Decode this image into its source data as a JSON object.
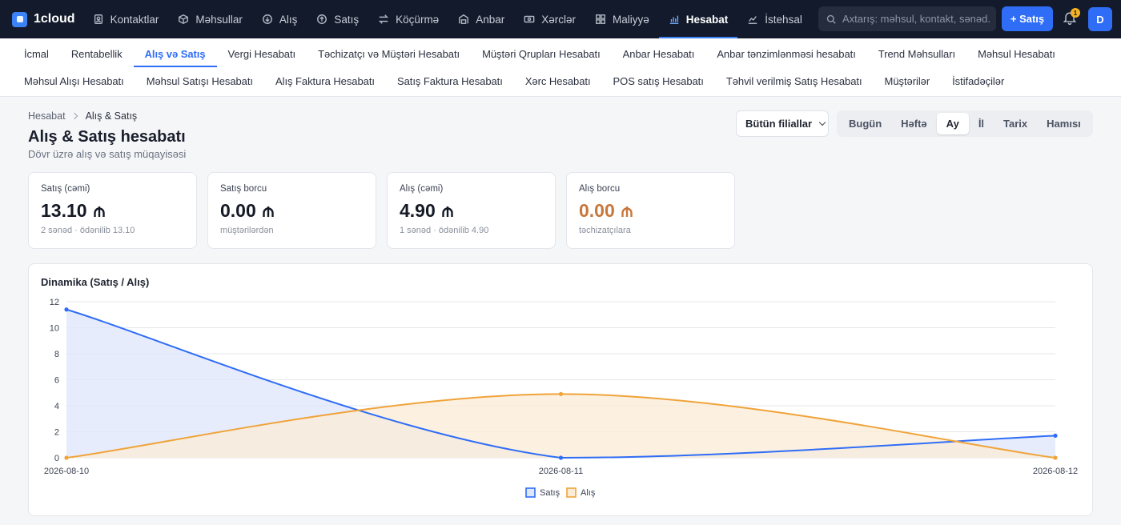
{
  "brand": {
    "name": "1cloud"
  },
  "nav": {
    "items": [
      {
        "label": "Kontaktlar",
        "icon": "contacts-icon"
      },
      {
        "label": "Məhsullar",
        "icon": "box-icon"
      },
      {
        "label": "Alış",
        "icon": "download-circle-icon"
      },
      {
        "label": "Satış",
        "icon": "upload-circle-icon"
      },
      {
        "label": "Köçürmə",
        "icon": "transfer-icon"
      },
      {
        "label": "Anbar",
        "icon": "warehouse-icon"
      },
      {
        "label": "Xərclər",
        "icon": "cash-icon"
      },
      {
        "label": "Maliyyə",
        "icon": "grid-icon"
      },
      {
        "label": "Hesabat",
        "icon": "bar-chart-icon",
        "active": true
      },
      {
        "label": "İstehsal",
        "icon": "factory-chart-icon"
      }
    ]
  },
  "header": {
    "search_placeholder": "Axtarış: məhsul, kontakt, sənəd...",
    "new_sale_label": "+ Satış",
    "notifications_count": "1",
    "avatar_initial": "D"
  },
  "subnav": {
    "row1": [
      "İcmal",
      "Rentabellik",
      "Alış və Satış",
      "Vergi Hesabatı",
      "Təchizatçı və Müştəri Hesabatı",
      "Müştəri Qrupları Hesabatı",
      "Anbar Hesabatı",
      "Anbar tənzimlənməsi hesabatı",
      "Trend Məhsulları",
      "Məhsul Hesabatı"
    ],
    "row2": [
      "Məhsul Alışı Hesabatı",
      "Məhsul Satışı Hesabatı",
      "Alış Faktura Hesabatı",
      "Satış Faktura Hesabatı",
      "Xərc Hesabatı",
      "POS satış Hesabatı",
      "Təhvil verilmiş Satış Hesabatı",
      "Müştərilər",
      "İstifadəçilər"
    ],
    "active": "Alış və Satış"
  },
  "page": {
    "breadcrumb": [
      "Hesabat",
      "Alış & Satış"
    ],
    "title": "Alış & Satış hesabatı",
    "subtitle": "Dövr üzrə alış və satış müqayisəsi",
    "branch_select": "Bütün filiallar",
    "periods": [
      "Bugün",
      "Həftə",
      "Ay",
      "İl",
      "Tarix",
      "Hamısı"
    ],
    "active_period": "Ay"
  },
  "cards": [
    {
      "label": "Satış (cəmi)",
      "value": "13.10",
      "sub": "2 sənəd · ödənilib 13.10",
      "color": "#141925"
    },
    {
      "label": "Satış borcu",
      "value": "0.00",
      "sub": "müştərilərdən",
      "color": "#141925"
    },
    {
      "label": "Alış (cəmi)",
      "value": "4.90",
      "sub": "1 sənəd · ödənilib 4.90",
      "color": "#141925"
    },
    {
      "label": "Alış borcu",
      "value": "0.00",
      "sub": "təchizatçılara",
      "color": "#c8773a"
    }
  ],
  "chart_data": {
    "type": "area",
    "title": "Dinamika (Satış / Alış)",
    "x": [
      "2026-08-10",
      "2026-08-11",
      "2026-08-12"
    ],
    "series": [
      {
        "name": "Satış",
        "values": [
          11.4,
          0,
          1.7
        ],
        "color": "#2f6df6",
        "fill": "#dde6fb"
      },
      {
        "name": "Alış",
        "values": [
          0,
          4.9,
          0
        ],
        "color": "#f0a33a",
        "fill": "#fbecd6"
      }
    ],
    "ylim": [
      0,
      12
    ],
    "yticks": [
      0,
      2,
      4,
      6,
      8,
      10,
      12
    ],
    "grid": true,
    "legend": "bottom-center",
    "curve": "smooth"
  }
}
